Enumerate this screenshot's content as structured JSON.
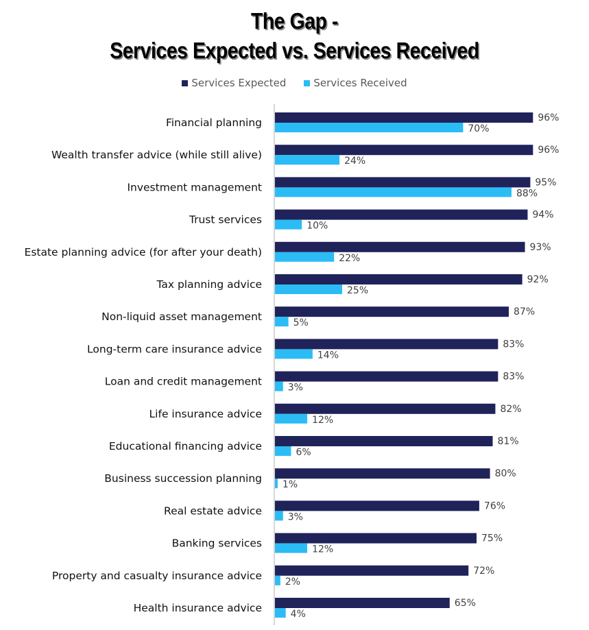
{
  "chart_data": {
    "type": "bar",
    "orientation": "horizontal",
    "title_line1": "The Gap -",
    "title_line2": "Services Expected vs. Services Received",
    "xlabel": "",
    "ylabel": "",
    "xlim": [
      0,
      100
    ],
    "grid": false,
    "legend_position": "top",
    "categories": [
      "Financial planning",
      "Wealth transfer advice (while still alive)",
      "Investment management",
      "Trust services",
      "Estate planning advice (for after your death)",
      "Tax planning advice",
      "Non-liquid asset management",
      "Long-term care insurance advice",
      "Loan and credit management",
      "Life insurance advice",
      "Educational financing advice",
      "Business succession planning",
      "Real estate advice",
      "Banking services",
      "Property and casualty insurance advice",
      "Health insurance advice"
    ],
    "series": [
      {
        "name": "Services Expected",
        "color": "#20235a",
        "values": [
          96,
          96,
          95,
          94,
          93,
          92,
          87,
          83,
          83,
          82,
          81,
          80,
          76,
          75,
          72,
          65
        ]
      },
      {
        "name": "Services Received",
        "color": "#2bbcf5",
        "values": [
          70,
          24,
          88,
          10,
          22,
          25,
          5,
          14,
          3,
          12,
          6,
          1,
          3,
          12,
          2,
          4
        ]
      }
    ],
    "value_suffix": "%"
  }
}
